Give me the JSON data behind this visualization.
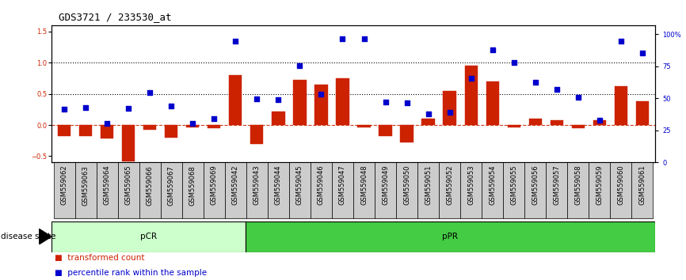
{
  "title": "GDS3721 / 233530_at",
  "samples": [
    "GSM559062",
    "GSM559063",
    "GSM559064",
    "GSM559065",
    "GSM559066",
    "GSM559067",
    "GSM559068",
    "GSM559069",
    "GSM559042",
    "GSM559043",
    "GSM559044",
    "GSM559045",
    "GSM559046",
    "GSM559047",
    "GSM559048",
    "GSM559049",
    "GSM559050",
    "GSM559051",
    "GSM559052",
    "GSM559053",
    "GSM559054",
    "GSM559055",
    "GSM559056",
    "GSM559057",
    "GSM559058",
    "GSM559059",
    "GSM559060",
    "GSM559061"
  ],
  "bar_values": [
    -0.18,
    -0.18,
    -0.22,
    -0.58,
    -0.08,
    -0.2,
    -0.04,
    -0.05,
    0.8,
    -0.3,
    0.22,
    0.72,
    0.65,
    0.75,
    -0.04,
    -0.18,
    -0.28,
    0.1,
    0.55,
    0.95,
    0.7,
    -0.04,
    0.1,
    0.08,
    -0.05,
    0.08,
    0.62,
    0.38
  ],
  "dot_values": [
    0.26,
    0.28,
    0.02,
    0.27,
    0.52,
    0.3,
    0.02,
    0.1,
    1.35,
    0.42,
    0.41,
    0.95,
    0.5,
    1.38,
    1.38,
    0.37,
    0.36,
    0.18,
    0.2,
    0.75,
    1.2,
    1.0,
    0.68,
    0.57,
    0.45,
    0.07,
    1.35,
    1.15
  ],
  "pCR_count": 9,
  "pPR_count": 19,
  "bar_color": "#cc2200",
  "dot_color": "#0000cc",
  "ylim_left": [
    -0.6,
    1.6
  ],
  "ylim_right": [
    0,
    107
  ],
  "yticks_left": [
    -0.5,
    0.0,
    0.5,
    1.0,
    1.5
  ],
  "yticks_right": [
    0,
    25,
    50,
    75,
    100
  ],
  "ytick_labels_right": [
    "0",
    "25",
    "50",
    "75",
    "100%"
  ],
  "background_color": "#ffffff",
  "legend_items": [
    "transformed count",
    "percentile rank within the sample"
  ],
  "disease_state_label": "disease state",
  "pCR_label": "pCR",
  "pPR_label": "pPR",
  "pCR_color": "#ccffcc",
  "pPR_color": "#44cc44",
  "title_fontsize": 9,
  "tick_fontsize": 6,
  "label_fontsize": 7.5
}
